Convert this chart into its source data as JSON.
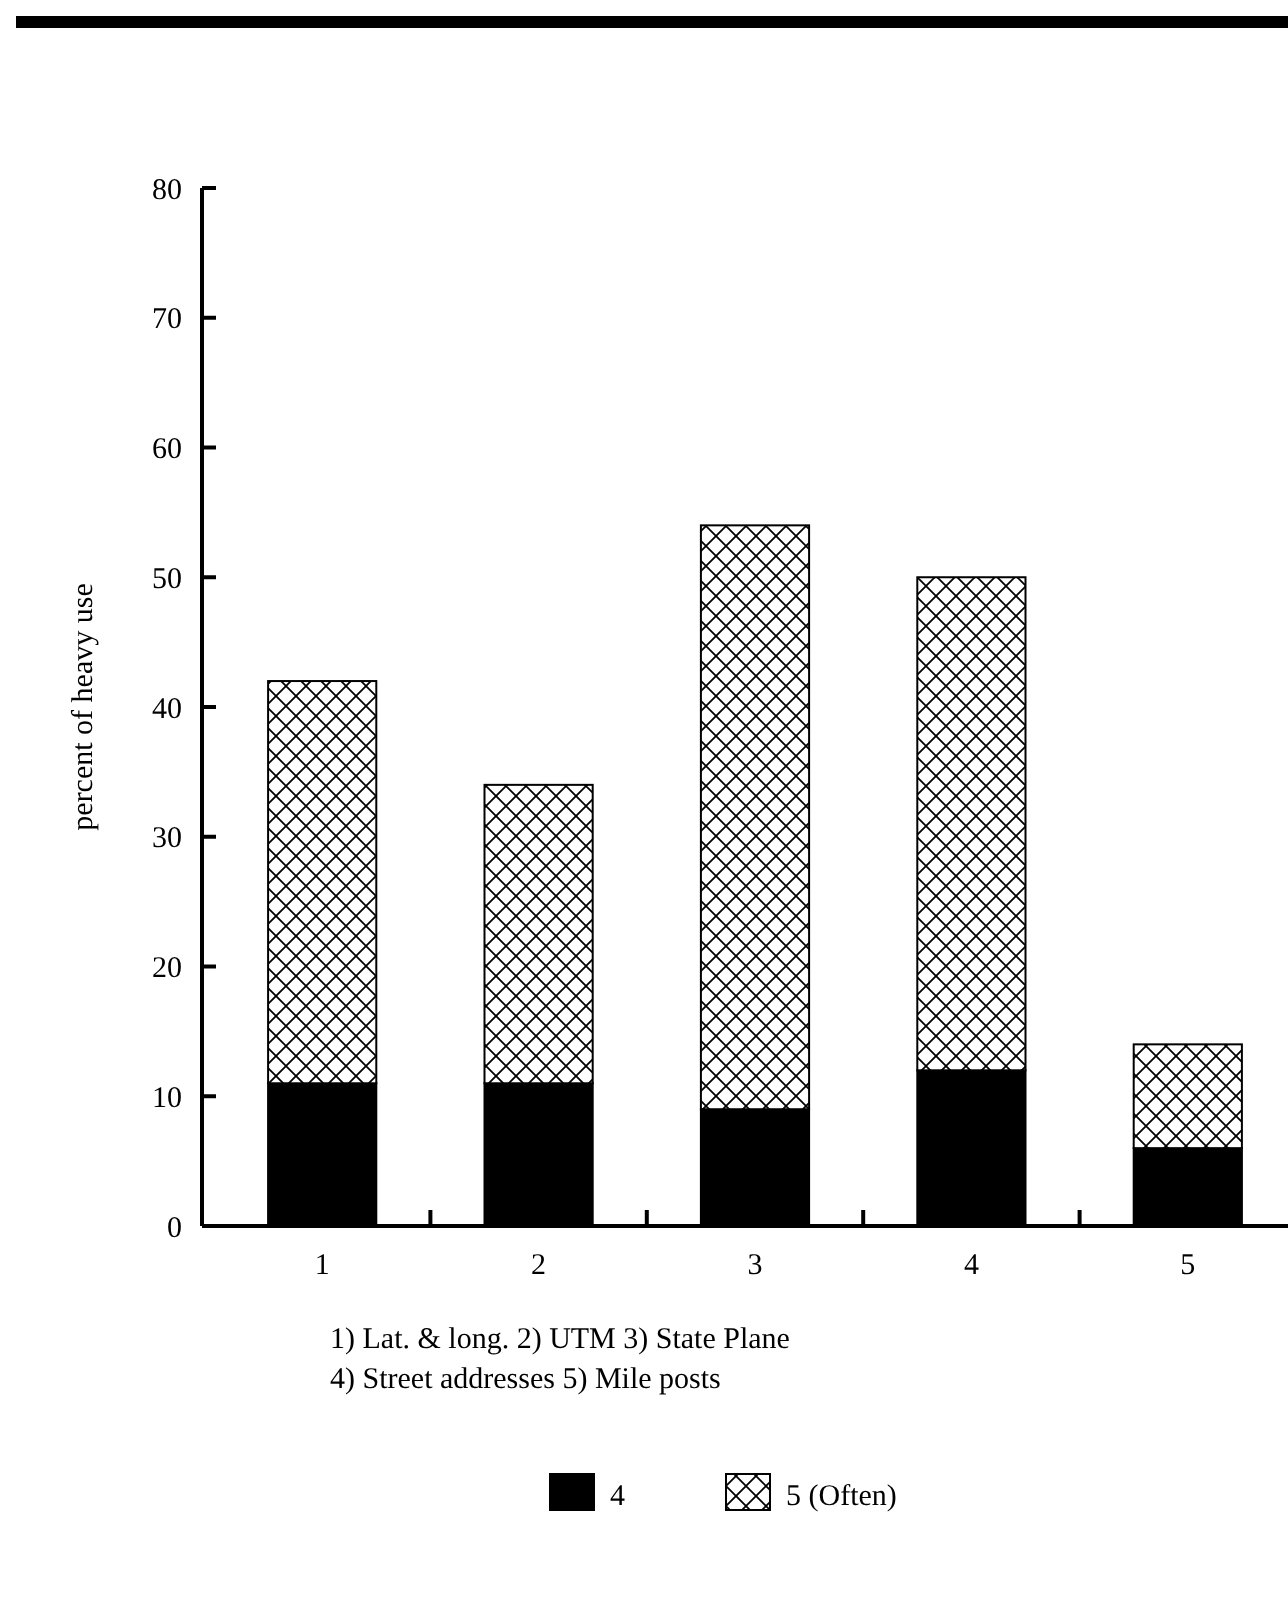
{
  "chart_data": {
    "type": "bar",
    "stacked": true,
    "ylabel": "percent of heavy use",
    "categories": [
      "1",
      "2",
      "3",
      "4",
      "5"
    ],
    "series": [
      {
        "name": "4",
        "color": "#000000",
        "values": [
          11,
          11,
          9,
          12,
          6
        ]
      },
      {
        "name": "5 (Often)",
        "color": "#000000",
        "values": [
          31,
          23,
          45,
          38,
          8
        ]
      }
    ],
    "ylim": [
      0,
      80
    ],
    "yticks": [
      0,
      10,
      20,
      30,
      40,
      50,
      60,
      70,
      80
    ],
    "legend": "bottom",
    "annotations": [
      "1) Lat. & long.  2) UTM  3) State Plane",
      "4) Street addresses  5) Mile posts"
    ]
  }
}
